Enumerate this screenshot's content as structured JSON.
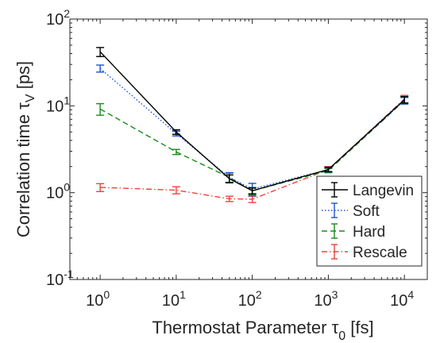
{
  "chart_data": {
    "type": "line",
    "xscale": "log",
    "yscale": "log",
    "xlim": [
      0.4,
      20000
    ],
    "ylim": [
      0.1,
      100
    ],
    "xlabel": "Thermostat Parameter τ",
    "xlabel_sub": "0",
    "xlabel_unit": " [fs]",
    "ylabel": "Correlation time τ",
    "ylabel_sub": "V",
    "ylabel_unit": " [ps]",
    "x_ticks": [
      {
        "value": 1,
        "base": "10",
        "exp": "0"
      },
      {
        "value": 10,
        "base": "10",
        "exp": "1"
      },
      {
        "value": 100,
        "base": "10",
        "exp": "2"
      },
      {
        "value": 1000,
        "base": "10",
        "exp": "3"
      },
      {
        "value": 10000,
        "base": "10",
        "exp": "4"
      }
    ],
    "y_ticks": [
      {
        "value": 0.1,
        "base": "10",
        "exp": "-1"
      },
      {
        "value": 1,
        "base": "10",
        "exp": "0"
      },
      {
        "value": 10,
        "base": "10",
        "exp": "1"
      },
      {
        "value": 100,
        "base": "10",
        "exp": "2"
      }
    ],
    "grid": false,
    "legend_position": "bottom-right",
    "series": [
      {
        "name": "Langevin",
        "color": "#000000",
        "dash": "solid",
        "x": [
          1,
          10,
          50,
          100,
          1000,
          10000
        ],
        "y": [
          42,
          5.0,
          1.45,
          1.05,
          1.85,
          11.8
        ],
        "err": [
          5,
          0.3,
          0.15,
          0.08,
          0.1,
          1.0
        ]
      },
      {
        "name": "Soft",
        "color": "#1f4fd6",
        "dash": "dotted",
        "x": [
          1,
          10,
          50,
          100,
          1000,
          10000
        ],
        "y": [
          27,
          4.8,
          1.5,
          1.1,
          1.85,
          11.5
        ],
        "err": [
          2.5,
          0.3,
          0.2,
          0.18,
          0.12,
          1.0
        ]
      },
      {
        "name": "Hard",
        "color": "#1a8a1a",
        "dash": "dashed",
        "x": [
          1,
          10,
          50,
          100,
          1000,
          10000
        ],
        "y": [
          9.2,
          2.95,
          1.5,
          1.05,
          1.8,
          11.5
        ],
        "err": [
          1.4,
          0.2,
          0.18,
          0.1,
          0.1,
          1.0
        ]
      },
      {
        "name": "Rescale",
        "color": "#f04040",
        "dash": "dashdot",
        "x": [
          1,
          10,
          50,
          100,
          1000,
          10000
        ],
        "y": [
          1.15,
          1.07,
          0.85,
          0.84,
          1.85,
          12.0
        ],
        "err": [
          0.12,
          0.1,
          0.06,
          0.07,
          0.15,
          1.2
        ]
      }
    ]
  }
}
